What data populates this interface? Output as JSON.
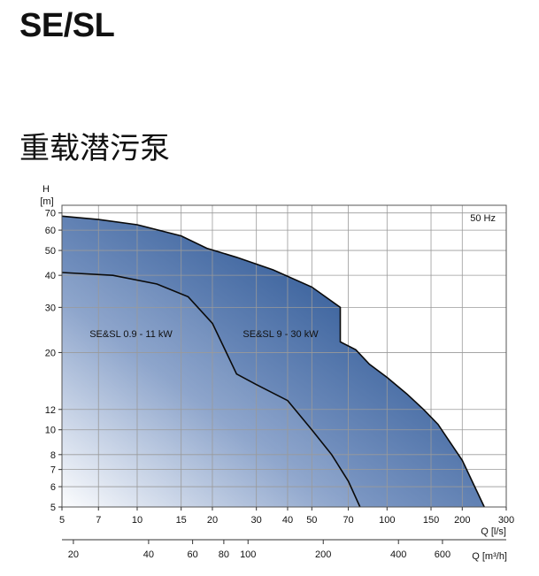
{
  "page": {
    "title": "SE/SL",
    "subtitle": "重载潜污泵"
  },
  "chart_data": {
    "type": "area",
    "frequency_label": "50 Hz",
    "y_axis": {
      "label": "H",
      "unit": "[m]",
      "scale": "log",
      "range": [
        5,
        75
      ],
      "ticks": [
        5,
        6,
        7,
        8,
        10,
        12,
        20,
        30,
        40,
        50,
        60,
        70
      ]
    },
    "x_axis": {
      "label": "Q [l/s]",
      "scale": "log",
      "range": [
        5,
        300
      ],
      "ticks": [
        5,
        7,
        10,
        15,
        20,
        30,
        40,
        50,
        70,
        100,
        150,
        200,
        300
      ]
    },
    "x_axis_secondary": {
      "label": "Q [m³/h]",
      "scale": "log",
      "ticks": [
        20,
        40,
        60,
        80,
        100,
        200,
        400,
        600
      ]
    },
    "grid": true,
    "series": [
      {
        "name": "SE&SL 9 - 30 kW",
        "color": "#2a5a95",
        "points": [
          [
            5,
            68
          ],
          [
            7,
            66
          ],
          [
            10,
            63
          ],
          [
            15,
            57
          ],
          [
            19,
            51
          ],
          [
            25,
            47
          ],
          [
            35,
            42
          ],
          [
            50,
            36
          ],
          [
            65,
            30
          ],
          [
            65,
            22
          ],
          [
            75,
            20.5
          ],
          [
            85,
            18
          ],
          [
            100,
            16
          ],
          [
            120,
            13.8
          ],
          [
            140,
            12
          ],
          [
            160,
            10.5
          ],
          [
            200,
            7.6
          ],
          [
            245,
            5
          ]
        ]
      },
      {
        "name": "SE&SL 0.9 - 11 kW",
        "color": "#5e82b4",
        "points": [
          [
            5,
            41
          ],
          [
            8,
            40
          ],
          [
            12,
            37
          ],
          [
            16,
            33
          ],
          [
            20,
            26
          ],
          [
            25,
            16.5
          ],
          [
            30,
            15
          ],
          [
            40,
            13
          ],
          [
            50,
            10
          ],
          [
            60,
            8
          ],
          [
            70,
            6.3
          ],
          [
            78,
            5
          ]
        ]
      }
    ]
  }
}
